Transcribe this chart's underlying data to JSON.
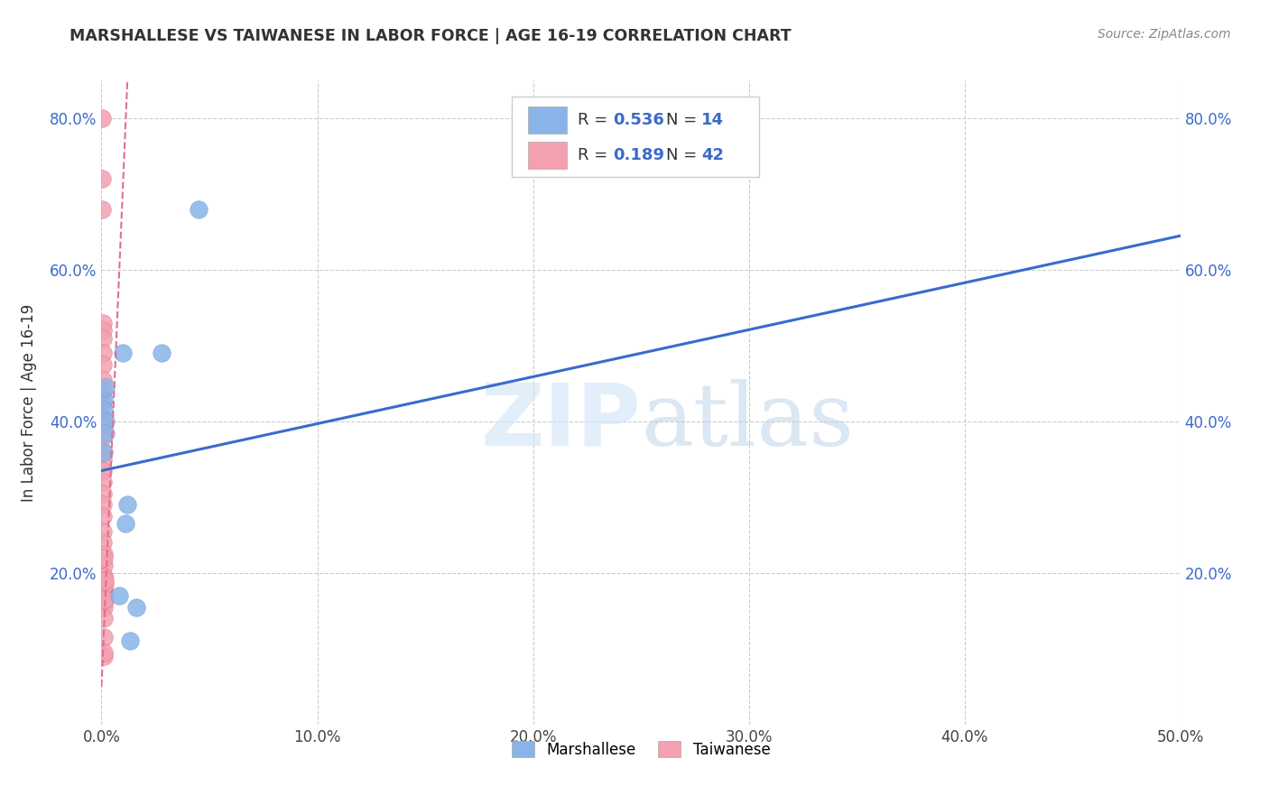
{
  "title": "MARSHALLESE VS TAIWANESE IN LABOR FORCE | AGE 16-19 CORRELATION CHART",
  "source": "Source: ZipAtlas.com",
  "ylabel": "In Labor Force | Age 16-19",
  "xlim": [
    0.0,
    0.5
  ],
  "ylim": [
    0.0,
    0.85
  ],
  "xtick_labels": [
    "0.0%",
    "10.0%",
    "20.0%",
    "30.0%",
    "40.0%",
    "50.0%"
  ],
  "xtick_vals": [
    0.0,
    0.1,
    0.2,
    0.3,
    0.4,
    0.5
  ],
  "ytick_labels": [
    "20.0%",
    "40.0%",
    "60.0%",
    "80.0%"
  ],
  "ytick_vals": [
    0.2,
    0.4,
    0.6,
    0.8
  ],
  "watermark": "ZIPatlas",
  "legend_r_blue": "0.536",
  "legend_n_blue": "14",
  "legend_r_pink": "0.189",
  "legend_n_pink": "42",
  "blue_color": "#89b4e8",
  "pink_color": "#f4a0b0",
  "blue_line_color": "#3a6bcc",
  "pink_line_color": "#e07090",
  "blue_scatter_edge": "#6090cc",
  "pink_scatter_edge": "#d06080",
  "marshallese_points": [
    [
      0.001,
      0.43
    ],
    [
      0.001,
      0.415
    ],
    [
      0.002,
      0.445
    ],
    [
      0.002,
      0.4
    ],
    [
      0.002,
      0.385
    ],
    [
      0.001,
      0.36
    ],
    [
      0.01,
      0.49
    ],
    [
      0.012,
      0.29
    ],
    [
      0.011,
      0.265
    ],
    [
      0.028,
      0.49
    ],
    [
      0.045,
      0.68
    ],
    [
      0.016,
      0.155
    ],
    [
      0.013,
      0.11
    ],
    [
      0.008,
      0.17
    ]
  ],
  "taiwanese_points": [
    [
      0.0003,
      0.8
    ],
    [
      0.0003,
      0.72
    ],
    [
      0.0003,
      0.68
    ],
    [
      0.0005,
      0.53
    ],
    [
      0.0005,
      0.52
    ],
    [
      0.0005,
      0.51
    ],
    [
      0.0005,
      0.49
    ],
    [
      0.0005,
      0.475
    ],
    [
      0.0006,
      0.455
    ],
    [
      0.0006,
      0.44
    ],
    [
      0.0006,
      0.425
    ],
    [
      0.0006,
      0.405
    ],
    [
      0.0006,
      0.395
    ],
    [
      0.0006,
      0.38
    ],
    [
      0.0006,
      0.36
    ],
    [
      0.0007,
      0.35
    ],
    [
      0.0007,
      0.335
    ],
    [
      0.0007,
      0.32
    ],
    [
      0.0007,
      0.305
    ],
    [
      0.0007,
      0.29
    ],
    [
      0.0008,
      0.275
    ],
    [
      0.0008,
      0.255
    ],
    [
      0.0008,
      0.24
    ],
    [
      0.0009,
      0.225
    ],
    [
      0.0009,
      0.21
    ],
    [
      0.0009,
      0.195
    ],
    [
      0.0009,
      0.175
    ],
    [
      0.0009,
      0.16
    ],
    [
      0.001,
      0.09
    ],
    [
      0.001,
      0.18
    ],
    [
      0.001,
      0.165
    ],
    [
      0.0011,
      0.175
    ],
    [
      0.0011,
      0.155
    ],
    [
      0.0011,
      0.14
    ],
    [
      0.0011,
      0.115
    ],
    [
      0.0011,
      0.095
    ],
    [
      0.0012,
      0.22
    ],
    [
      0.0012,
      0.195
    ],
    [
      0.0012,
      0.17
    ],
    [
      0.0013,
      0.185
    ],
    [
      0.0013,
      0.165
    ],
    [
      0.0014,
      0.19
    ]
  ],
  "blue_line_x": [
    0.0,
    0.5
  ],
  "blue_line_y": [
    0.335,
    0.645
  ],
  "pink_line_x": [
    0.0,
    0.012
  ],
  "pink_line_y": [
    0.05,
    0.85
  ]
}
